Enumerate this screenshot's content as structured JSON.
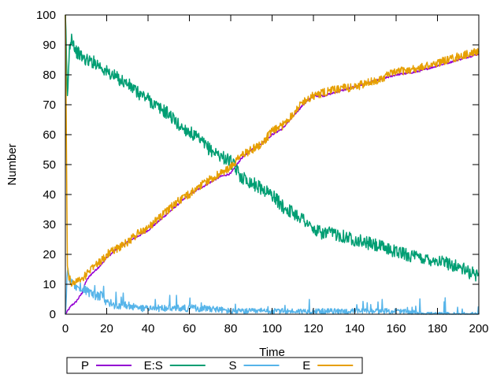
{
  "chart_data": {
    "type": "line",
    "title": "",
    "xlabel": "Time",
    "ylabel": "Number",
    "xlim": [
      0,
      200
    ],
    "ylim": [
      0,
      100
    ],
    "xticks": [
      0,
      20,
      40,
      60,
      80,
      100,
      120,
      140,
      160,
      180,
      200
    ],
    "yticks": [
      0,
      10,
      20,
      30,
      40,
      50,
      60,
      70,
      80,
      90,
      100
    ],
    "grid": false,
    "legend_position": "bottom-left",
    "series": [
      {
        "name": "P",
        "color": "#9400d3",
        "x": [
          0,
          1,
          3,
          5,
          8,
          10,
          12,
          15,
          18,
          20,
          22,
          25,
          30,
          35,
          40,
          45,
          50,
          55,
          60,
          65,
          70,
          75,
          80,
          85,
          90,
          95,
          100,
          105,
          110,
          115,
          120,
          125,
          130,
          140,
          150,
          160,
          170,
          180,
          190,
          200
        ],
        "values": [
          0,
          1,
          3,
          4,
          7,
          11,
          13,
          15,
          17,
          19,
          20,
          22,
          24,
          26,
          28,
          31,
          34,
          37,
          40,
          42,
          44,
          46,
          47,
          52,
          55,
          57,
          60,
          62,
          66,
          70,
          73,
          73,
          74,
          76,
          78,
          80,
          81,
          83,
          85,
          87
        ]
      },
      {
        "name": "E:S",
        "color": "#009e73",
        "x": [
          0,
          1,
          2,
          3,
          5,
          8,
          10,
          15,
          20,
          25,
          30,
          35,
          40,
          45,
          50,
          55,
          60,
          65,
          70,
          75,
          80,
          85,
          90,
          95,
          100,
          105,
          110,
          115,
          120,
          125,
          130,
          135,
          140,
          150,
          160,
          170,
          180,
          190,
          195,
          200
        ],
        "values": [
          100,
          72,
          89,
          93,
          88,
          86,
          85,
          84,
          81,
          79,
          77,
          74,
          72,
          69,
          67,
          63,
          61,
          58,
          55,
          53,
          51,
          46,
          44,
          42,
          40,
          36,
          34,
          32,
          28,
          27,
          27,
          26,
          25,
          23,
          21,
          19,
          18,
          16,
          14,
          13
        ]
      },
      {
        "name": "S",
        "color": "#56b4e9",
        "x": [
          0,
          1,
          2,
          4,
          6,
          8,
          10,
          12,
          15,
          18,
          20,
          25,
          30,
          35,
          40,
          45,
          50,
          55,
          60,
          70,
          80,
          90,
          100,
          120,
          140,
          160,
          180,
          200
        ],
        "values": [
          0,
          15,
          12,
          10,
          9,
          9,
          8,
          7,
          6,
          6,
          4,
          3,
          3,
          2,
          2,
          2,
          2,
          2,
          2,
          2,
          1,
          1,
          1,
          1,
          1,
          1,
          0,
          0
        ]
      },
      {
        "name": "E",
        "color": "#e69f00",
        "x": [
          0,
          1,
          2,
          3,
          5,
          8,
          10,
          12,
          15,
          18,
          20,
          25,
          30,
          35,
          40,
          45,
          50,
          55,
          60,
          65,
          70,
          75,
          80,
          85,
          90,
          95,
          100,
          105,
          110,
          115,
          120,
          125,
          130,
          140,
          150,
          160,
          170,
          180,
          190,
          200
        ],
        "values": [
          100,
          15,
          12,
          10,
          11,
          12,
          13,
          15,
          17,
          18,
          20,
          22,
          24,
          27,
          29,
          32,
          35,
          38,
          40,
          43,
          45,
          47,
          49,
          53,
          55,
          57,
          61,
          63,
          67,
          71,
          73,
          74,
          75,
          76,
          78,
          81,
          82,
          84,
          86,
          88
        ]
      }
    ]
  }
}
